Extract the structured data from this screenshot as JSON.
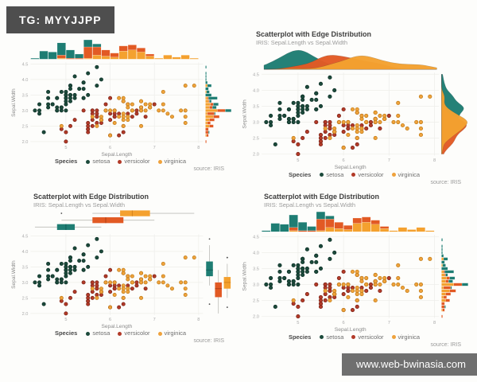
{
  "watermark_badge": {
    "text": "TG: MYYJJPP",
    "bg": "#4e4e4e",
    "fg": "#ffffff"
  },
  "watermark_url": {
    "text": "www.web-bwinasia.com",
    "bg": "#6f6f6f",
    "fg": "#ffffff"
  },
  "source_label": "source: IRIS",
  "legend": {
    "title": "Species",
    "items": [
      {
        "label": "setosa",
        "color": "#1c4a3b"
      },
      {
        "label": "versicolor",
        "color": "#b23a28"
      },
      {
        "label": "virginica",
        "color": "#efa23c"
      }
    ]
  },
  "panels": [
    {
      "position": "top-left",
      "title": "",
      "subtitle": "",
      "margin_type": "histogram"
    },
    {
      "position": "top-right",
      "title": "Scatterplot with Edge Distribution",
      "subtitle": "IRIS: Sepal.Length vs Sepal.Width",
      "margin_type": "density"
    },
    {
      "position": "bottom-left",
      "title": "Scatterplot with Edge Distribution",
      "subtitle": "IRIS: Sepal.Length vs Sepal.Width",
      "margin_type": "boxplot"
    },
    {
      "position": "bottom-right",
      "title": "Scatterplot with Edge Distribution",
      "subtitle": "IRIS: Sepal.Length vs Sepal.Width",
      "margin_type": "histogram"
    }
  ],
  "chart_data": {
    "type": "scatter",
    "title": "Scatterplot with Edge Distribution",
    "subtitle": "IRIS: Sepal.Length vs Sepal.Width",
    "xlabel": "Sepal.Length",
    "ylabel": "Sepal.Width",
    "xlim": [
      4.2,
      8.1
    ],
    "ylim": [
      1.95,
      4.55
    ],
    "xticks": [
      "5",
      "6",
      "7",
      "8"
    ],
    "yticks": [
      "2.0",
      "2.5",
      "3.0",
      "3.5",
      "4.0",
      "4.5"
    ],
    "grid": true,
    "legend_position": "bottom",
    "marginal_plots": [
      "histogram",
      "density",
      "boxplot",
      "histogram"
    ],
    "series": [
      {
        "name": "setosa",
        "color": "#1c4a3b",
        "stroke": "#0d2f26",
        "margin_color": "#1e7d73",
        "margin_dark": "#135f58",
        "x": [
          5.1,
          4.9,
          4.7,
          4.6,
          5.0,
          5.4,
          4.6,
          5.0,
          4.4,
          4.9,
          5.4,
          4.8,
          4.8,
          4.3,
          5.8,
          5.7,
          5.4,
          5.1,
          5.7,
          5.1,
          5.4,
          5.1,
          4.6,
          5.1,
          4.8,
          5.0,
          5.0,
          5.2,
          5.2,
          4.7,
          4.8,
          5.4,
          5.2,
          5.5,
          4.9,
          5.0,
          5.5,
          4.9,
          4.4,
          5.1,
          5.0,
          4.5,
          4.4,
          5.0,
          5.1,
          4.8,
          5.1,
          4.6,
          5.3,
          5.0
        ],
        "y": [
          3.5,
          3.0,
          3.2,
          3.1,
          3.6,
          3.9,
          3.4,
          3.4,
          2.9,
          3.1,
          3.7,
          3.4,
          3.0,
          3.0,
          4.0,
          4.4,
          3.9,
          3.5,
          3.8,
          3.8,
          3.4,
          3.7,
          3.6,
          3.3,
          3.4,
          3.0,
          3.4,
          3.5,
          3.4,
          3.2,
          3.1,
          3.4,
          4.1,
          4.2,
          3.1,
          3.2,
          3.5,
          3.6,
          3.0,
          3.4,
          3.5,
          2.3,
          3.2,
          3.5,
          3.8,
          3.0,
          3.8,
          3.2,
          3.7,
          3.3
        ]
      },
      {
        "name": "versicolor",
        "color": "#b23a28",
        "stroke": "#7a2216",
        "margin_color": "#e25a24",
        "margin_dark": "#b34317",
        "x": [
          7.0,
          6.4,
          6.9,
          5.5,
          6.5,
          5.7,
          6.3,
          4.9,
          6.6,
          5.2,
          5.0,
          5.9,
          6.0,
          6.1,
          5.6,
          6.7,
          5.6,
          5.8,
          6.2,
          5.6,
          5.9,
          6.1,
          6.3,
          6.1,
          6.4,
          6.6,
          6.8,
          6.7,
          6.0,
          5.7,
          5.5,
          5.5,
          5.8,
          6.0,
          5.4,
          6.0,
          6.7,
          6.3,
          5.6,
          5.5,
          5.5,
          6.1,
          5.8,
          5.0,
          5.6,
          5.7,
          5.7,
          6.2,
          5.1,
          5.7
        ],
        "y": [
          3.2,
          3.2,
          3.1,
          2.3,
          2.8,
          2.8,
          3.3,
          2.4,
          2.9,
          2.7,
          2.0,
          3.0,
          2.2,
          2.9,
          2.9,
          3.1,
          3.0,
          2.7,
          2.2,
          2.5,
          3.2,
          2.8,
          2.5,
          2.8,
          2.9,
          3.0,
          2.8,
          3.0,
          2.9,
          2.6,
          2.4,
          2.4,
          2.7,
          2.7,
          3.0,
          3.4,
          3.1,
          2.3,
          3.0,
          2.5,
          2.6,
          3.0,
          2.6,
          2.3,
          2.7,
          3.0,
          2.9,
          2.9,
          2.5,
          2.8
        ]
      },
      {
        "name": "virginica",
        "color": "#efa23c",
        "stroke": "#bf7b16",
        "margin_color": "#f4a12f",
        "margin_dark": "#d4821c",
        "x": [
          6.3,
          5.8,
          7.1,
          6.3,
          6.5,
          7.6,
          4.9,
          7.3,
          6.7,
          7.2,
          6.5,
          6.4,
          6.8,
          5.7,
          5.8,
          6.4,
          6.5,
          7.7,
          7.7,
          6.0,
          6.9,
          5.6,
          7.7,
          6.3,
          6.7,
          7.2,
          6.2,
          6.1,
          6.4,
          7.2,
          7.4,
          7.9,
          6.4,
          6.3,
          6.1,
          7.7,
          6.3,
          6.4,
          6.0,
          6.9,
          6.7,
          6.9,
          5.8,
          6.8,
          6.7,
          6.7,
          6.3,
          6.5,
          6.2,
          5.9
        ],
        "y": [
          3.3,
          2.7,
          3.0,
          2.9,
          3.0,
          3.0,
          2.5,
          2.9,
          2.5,
          3.6,
          3.2,
          2.7,
          3.0,
          2.5,
          2.8,
          3.2,
          3.0,
          3.8,
          2.6,
          2.2,
          3.2,
          2.8,
          2.8,
          2.7,
          3.3,
          3.2,
          2.8,
          3.0,
          2.8,
          3.0,
          2.8,
          3.8,
          2.8,
          2.8,
          2.6,
          3.0,
          3.4,
          3.1,
          3.0,
          3.1,
          3.1,
          3.1,
          2.7,
          3.2,
          3.3,
          3.0,
          2.5,
          3.0,
          3.4,
          3.0
        ]
      }
    ]
  }
}
